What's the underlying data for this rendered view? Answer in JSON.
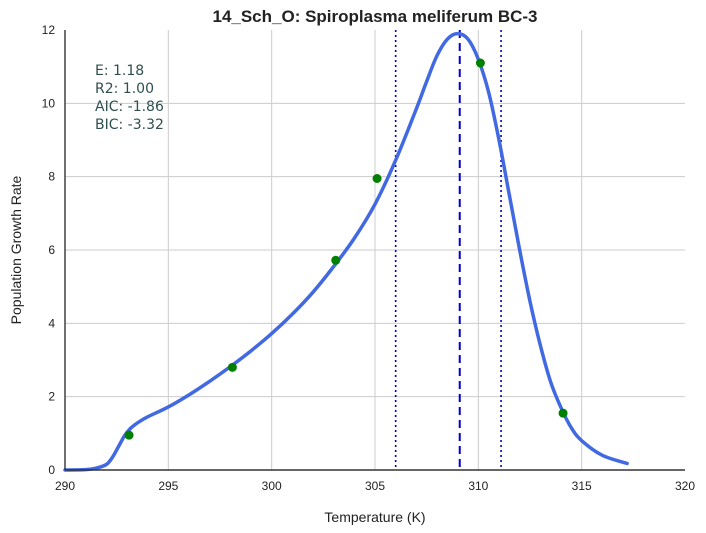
{
  "chart_data": {
    "type": "line",
    "title": "14_Sch_O: Spiroplasma meliferum BC-3",
    "xlabel": "Temperature (K)",
    "ylabel": "Population Growth Rate",
    "xlim": [
      290,
      320
    ],
    "ylim": [
      0,
      12
    ],
    "xticks": [
      "290",
      "295",
      "300",
      "305",
      "310",
      "315",
      "320"
    ],
    "yticks": [
      "0",
      "2",
      "4",
      "6",
      "8",
      "10",
      "12"
    ],
    "grid": true,
    "colors": {
      "fit_line": "#4169e1",
      "points": "#008000",
      "vlines": "#0000cc",
      "stats_text": "#2f4f4f",
      "grid": "#cccccc",
      "axis": "#333333"
    },
    "series": [
      {
        "kind": "fitted-curve",
        "x": [
          290,
          291,
          291.5,
          292,
          292.3,
          292.6,
          292.9,
          293.2,
          293.6,
          294,
          295,
          296,
          297,
          298,
          299,
          300,
          301,
          302,
          303,
          304,
          305,
          306,
          307,
          307.5,
          308,
          308.5,
          309,
          309.5,
          310,
          310.5,
          311,
          311.5,
          312,
          312.5,
          313,
          313.5,
          314,
          314.5,
          315,
          316,
          317.2
        ],
        "y": [
          0.0,
          0.01,
          0.05,
          0.15,
          0.35,
          0.65,
          0.95,
          1.15,
          1.32,
          1.45,
          1.72,
          2.05,
          2.42,
          2.82,
          3.25,
          3.72,
          4.25,
          4.85,
          5.55,
          6.32,
          7.25,
          8.45,
          9.85,
          10.6,
          11.3,
          11.75,
          11.9,
          11.75,
          11.2,
          10.3,
          9.0,
          7.5,
          6.0,
          4.6,
          3.4,
          2.4,
          1.7,
          1.15,
          0.8,
          0.4,
          0.18
        ]
      },
      {
        "kind": "observed-points",
        "x": [
          293.1,
          298.1,
          303.1,
          305.1,
          310.1,
          314.1
        ],
        "y": [
          0.95,
          2.8,
          5.72,
          7.95,
          11.1,
          1.55
        ]
      }
    ],
    "vlines": [
      {
        "x": 306.0,
        "style": "dotted"
      },
      {
        "x": 309.1,
        "style": "dashed"
      },
      {
        "x": 311.1,
        "style": "dotted"
      }
    ],
    "annotations": [
      "E:  1.18",
      "R2:  1.00",
      "AIC: -1.86",
      "BIC: -3.32"
    ]
  }
}
